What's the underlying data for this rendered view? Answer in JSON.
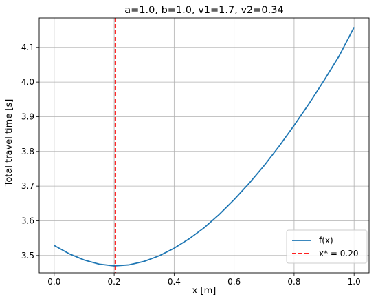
{
  "chart_data": {
    "type": "line",
    "title": "a=1.0, b=1.0, v1=1.7, v2=0.34",
    "xlabel": "x [m]",
    "ylabel": "Total travel time [s]",
    "xlim": [
      -0.05,
      1.05
    ],
    "ylim": [
      3.45,
      4.185
    ],
    "xticks": [
      0.0,
      0.2,
      0.4,
      0.6,
      0.8,
      1.0
    ],
    "xtick_labels": [
      "0.0",
      "0.2",
      "0.4",
      "0.6",
      "0.8",
      "1.0"
    ],
    "yticks": [
      3.5,
      3.6,
      3.7,
      3.8,
      3.9,
      4.0,
      4.1
    ],
    "ytick_labels": [
      "3.5",
      "3.6",
      "3.7",
      "3.8",
      "3.9",
      "4.0",
      "4.1"
    ],
    "grid": true,
    "legend_position": "bottom-right",
    "series": [
      {
        "name": "f(x)",
        "color": "#1f77b4",
        "x": [
          0.0,
          0.05,
          0.1,
          0.15,
          0.2,
          0.25,
          0.3,
          0.35,
          0.4,
          0.45,
          0.5,
          0.55,
          0.6,
          0.65,
          0.7,
          0.75,
          0.8,
          0.85,
          0.9,
          0.95,
          1.0
        ],
        "y": [
          3.529,
          3.505,
          3.487,
          3.475,
          3.47,
          3.473,
          3.483,
          3.499,
          3.521,
          3.548,
          3.58,
          3.618,
          3.661,
          3.708,
          3.759,
          3.815,
          3.875,
          3.938,
          4.005,
          4.075,
          4.158
        ]
      }
    ],
    "vline": {
      "name": "x* = 0.20",
      "x": 0.204,
      "color": "#ff0000",
      "style": "dashed"
    }
  }
}
